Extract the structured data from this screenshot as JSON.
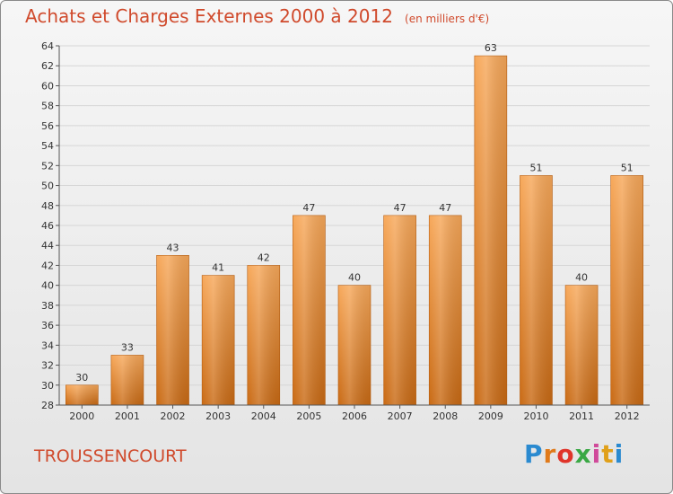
{
  "title": "Achats et Charges Externes 2000 à 2012",
  "subtitle": "(en milliers d'€)",
  "commune": "TROUSSENCOURT",
  "logo": {
    "text": "Proxiti",
    "letter_colors": [
      "#2a8ad0",
      "#e07a1a",
      "#e0342a",
      "#3aa845",
      "#d04a9a",
      "#e0a01a",
      "#2a8ad0"
    ]
  },
  "colors": {
    "title": "#d04a2c",
    "bar_top": "#f7a85a",
    "bar_bottom": "#c96a14",
    "grid": "#d6d6d6",
    "axis": "#555555"
  },
  "chart_data": {
    "type": "bar",
    "categories": [
      "2000",
      "2001",
      "2002",
      "2003",
      "2004",
      "2005",
      "2006",
      "2007",
      "2008",
      "2009",
      "2010",
      "2011",
      "2012"
    ],
    "values": [
      30,
      33,
      43,
      41,
      42,
      47,
      40,
      47,
      47,
      63,
      51,
      40,
      51
    ],
    "data_labels": [
      "30",
      "33",
      "43",
      "41",
      "42",
      "47",
      "40",
      "47",
      "47",
      "63",
      "51",
      "40",
      "51"
    ],
    "ylim": [
      28,
      64
    ],
    "yticks": [
      28,
      30,
      32,
      34,
      36,
      38,
      40,
      42,
      44,
      46,
      48,
      50,
      52,
      54,
      56,
      58,
      60,
      62,
      64
    ],
    "grid": true,
    "legend": "none"
  }
}
